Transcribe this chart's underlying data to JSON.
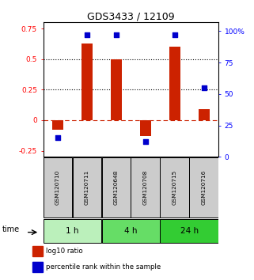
{
  "title": "GDS3433 / 12109",
  "samples": [
    "GSM120710",
    "GSM120711",
    "GSM120648",
    "GSM120708",
    "GSM120715",
    "GSM120716"
  ],
  "log10_ratio": [
    -0.08,
    0.63,
    0.5,
    -0.13,
    0.6,
    0.09
  ],
  "percentile_rank": [
    15,
    97,
    97,
    12,
    97,
    55
  ],
  "groups": [
    {
      "label": "1 h",
      "indices": [
        0,
        1
      ],
      "color": "#bbf0bb"
    },
    {
      "label": "4 h",
      "indices": [
        2,
        3
      ],
      "color": "#66dd66"
    },
    {
      "label": "24 h",
      "indices": [
        4,
        5
      ],
      "color": "#33cc33"
    }
  ],
  "ylim_left": [
    -0.3,
    0.8
  ],
  "ylim_right": [
    0,
    107
  ],
  "yticks_left": [
    -0.25,
    0.0,
    0.25,
    0.5,
    0.75
  ],
  "yticks_right": [
    0,
    25,
    50,
    75,
    100
  ],
  "ytick_labels_left": [
    "-0.25",
    "0",
    "0.25",
    "0.5",
    "0.75"
  ],
  "ytick_labels_right": [
    "0",
    "25",
    "50",
    "75",
    "100%"
  ],
  "hlines": [
    0.25,
    0.5
  ],
  "bar_color": "#cc2200",
  "dot_color": "#0000cc",
  "zero_line_color": "#cc2200",
  "bg_color": "#ffffff",
  "sample_box_color": "#cccccc",
  "legend_items": [
    {
      "color": "#cc2200",
      "label": "log10 ratio"
    },
    {
      "color": "#0000cc",
      "label": "percentile rank within the sample"
    }
  ]
}
